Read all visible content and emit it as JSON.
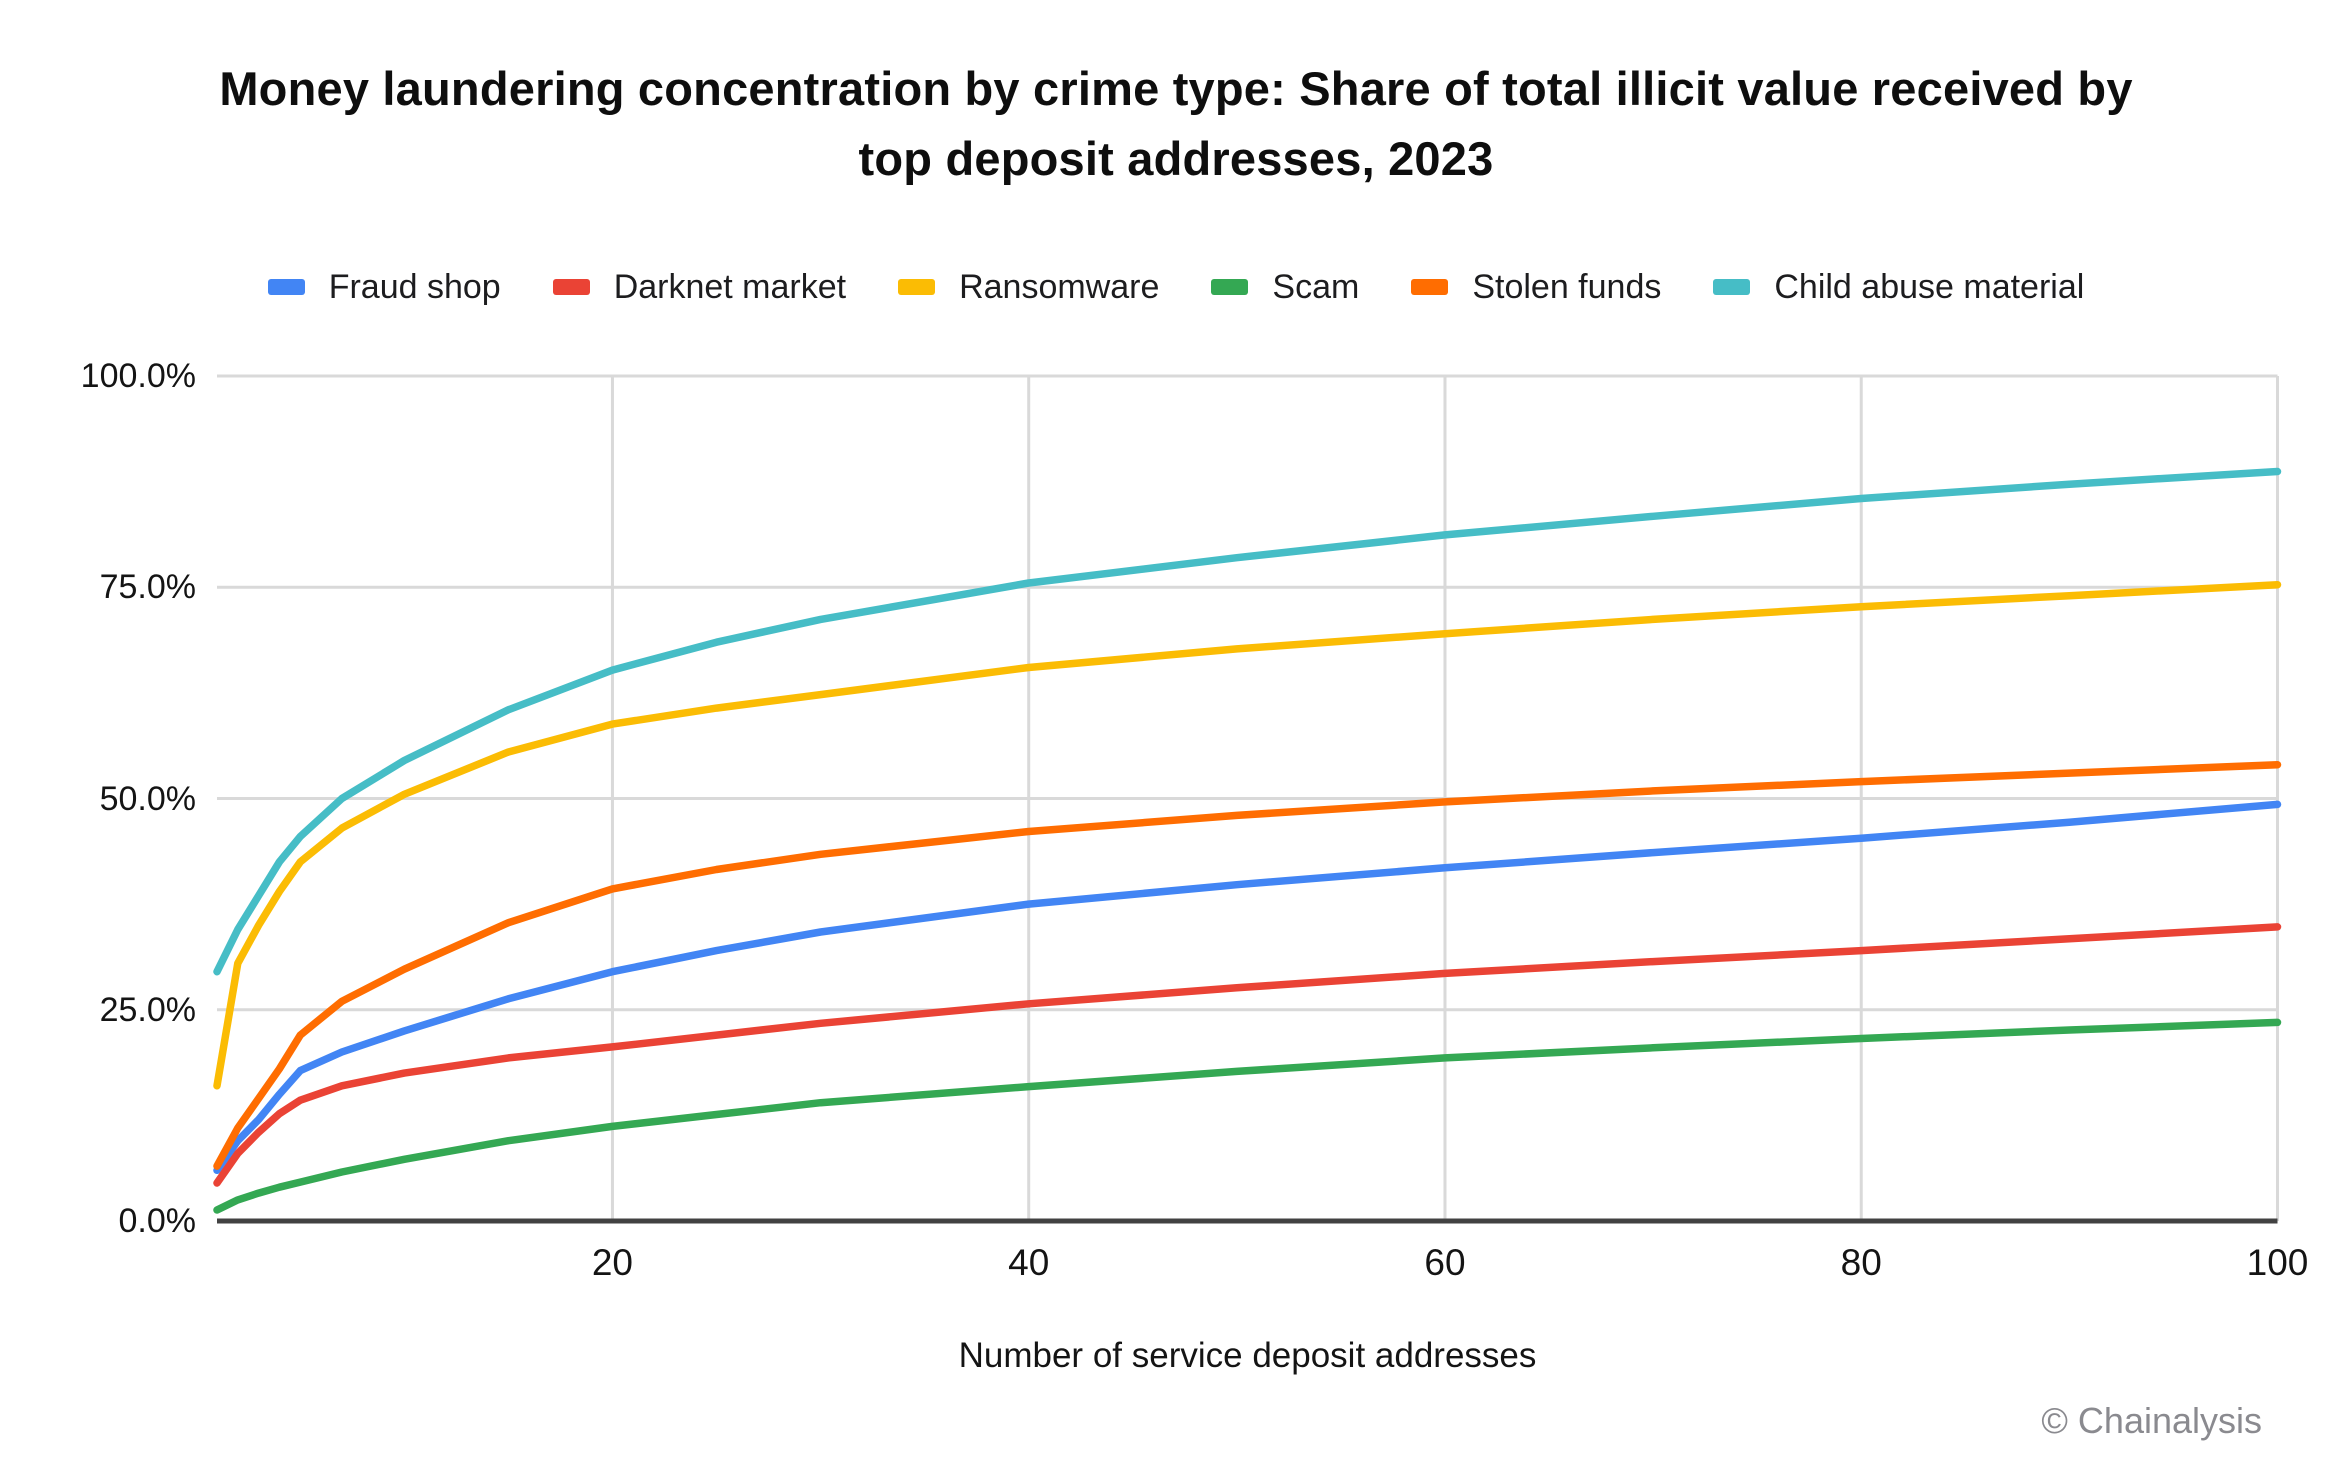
{
  "title": {
    "line1": "Money laundering concentration by crime type: Share of total illicit value received by",
    "line2": "top deposit addresses, 2023"
  },
  "footer": {
    "credit": "© Chainalysis"
  },
  "colors": {
    "background": "#FFFFFF",
    "gridline": "#D9D9D9",
    "axis_line": "#424242",
    "text": "#141414",
    "muted_text": "#8A8A8F"
  },
  "chart_data": {
    "type": "line",
    "title": "Money laundering concentration by crime type: Share of total illicit value received by top deposit addresses, 2023",
    "xlabel": "Number of service deposit addresses",
    "ylabel": "",
    "xlim": [
      1,
      100
    ],
    "ylim": [
      0,
      100
    ],
    "grid": true,
    "legend_position": "top",
    "x_ticks": [
      20,
      40,
      60,
      80,
      100
    ],
    "y_ticks": [
      "0.0%",
      "25.0%",
      "50.0%",
      "75.0%",
      "100.0%"
    ],
    "y_tick_values": [
      0,
      25,
      50,
      75,
      100
    ],
    "x": [
      1,
      2,
      3,
      4,
      5,
      7,
      10,
      15,
      20,
      25,
      30,
      40,
      50,
      60,
      70,
      80,
      90,
      100
    ],
    "series": [
      {
        "name": "Fraud shop",
        "color": "#4285F4",
        "values": [
          6.0,
          9.5,
          12.0,
          15.0,
          17.8,
          20.0,
          22.5,
          26.3,
          29.5,
          32.0,
          34.2,
          37.5,
          39.8,
          41.8,
          43.6,
          45.3,
          47.2,
          49.3
        ]
      },
      {
        "name": "Darknet market",
        "color": "#EA4335",
        "values": [
          4.5,
          8.0,
          10.5,
          12.7,
          14.3,
          16.0,
          17.5,
          19.3,
          20.6,
          22.0,
          23.4,
          25.7,
          27.6,
          29.3,
          30.7,
          32.0,
          33.4,
          34.8
        ]
      },
      {
        "name": "Ransomware",
        "color": "#FBBC04",
        "values": [
          16.0,
          30.5,
          35.0,
          39.0,
          42.5,
          46.5,
          50.5,
          55.5,
          58.8,
          60.7,
          62.3,
          65.5,
          67.7,
          69.5,
          71.2,
          72.7,
          74.0,
          75.3
        ]
      },
      {
        "name": "Scam",
        "color": "#34A853",
        "values": [
          1.3,
          2.5,
          3.3,
          4.0,
          4.6,
          5.8,
          7.3,
          9.5,
          11.2,
          12.6,
          14.0,
          15.9,
          17.7,
          19.3,
          20.5,
          21.6,
          22.6,
          23.5
        ]
      },
      {
        "name": "Stolen funds",
        "color": "#FF6D01",
        "values": [
          6.5,
          11.0,
          14.5,
          18.0,
          22.0,
          26.0,
          29.8,
          35.3,
          39.3,
          41.6,
          43.4,
          46.1,
          48.0,
          49.6,
          50.9,
          52.0,
          53.0,
          54.0
        ]
      },
      {
        "name": "Child abuse material",
        "color": "#46BDC6",
        "values": [
          29.5,
          34.5,
          38.5,
          42.5,
          45.5,
          50.0,
          54.5,
          60.5,
          65.2,
          68.5,
          71.2,
          75.5,
          78.5,
          81.2,
          83.4,
          85.5,
          87.2,
          88.7
        ]
      }
    ]
  }
}
